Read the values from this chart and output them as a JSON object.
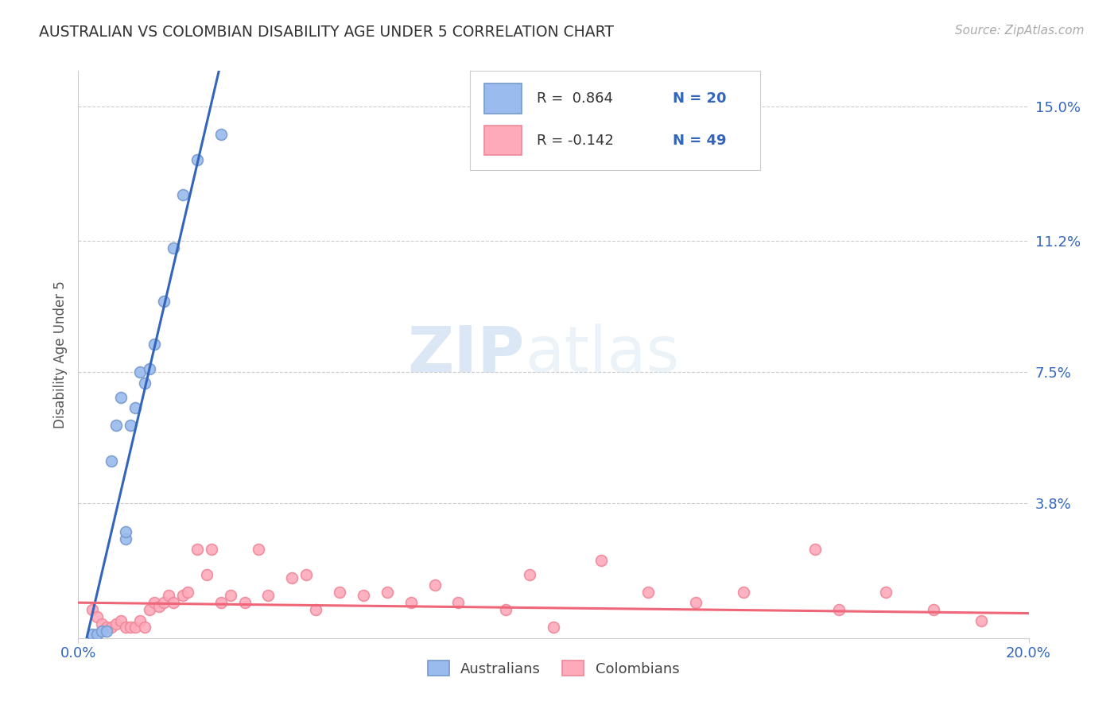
{
  "title": "AUSTRALIAN VS COLOMBIAN DISABILITY AGE UNDER 5 CORRELATION CHART",
  "source": "Source: ZipAtlas.com",
  "ylabel": "Disability Age Under 5",
  "watermark_zip": "ZIP",
  "watermark_atlas": "atlas",
  "xlim": [
    0.0,
    0.2
  ],
  "ylim": [
    0.0,
    0.16
  ],
  "yticks": [
    0.038,
    0.075,
    0.112,
    0.15
  ],
  "ytick_labels": [
    "3.8%",
    "7.5%",
    "11.2%",
    "15.0%"
  ],
  "background_color": "#ffffff",
  "grid_color": "#cccccc",
  "title_color": "#333333",
  "source_color": "#aaaaaa",
  "aus_scatter_color": "#99bbee",
  "aus_edge_color": "#7799cc",
  "col_scatter_color": "#ffaabb",
  "col_edge_color": "#ee8899",
  "aus_line_color": "#3366bb",
  "col_line_color": "#ee6677",
  "tick_color": "#3366bb",
  "aus_R": 0.864,
  "aus_N": 20,
  "col_R": -0.142,
  "col_N": 49,
  "aus_points_x": [
    0.003,
    0.004,
    0.005,
    0.006,
    0.007,
    0.008,
    0.009,
    0.01,
    0.01,
    0.011,
    0.012,
    0.013,
    0.014,
    0.015,
    0.016,
    0.018,
    0.02,
    0.022,
    0.025,
    0.03
  ],
  "aus_points_y": [
    0.001,
    0.001,
    0.002,
    0.002,
    0.05,
    0.06,
    0.068,
    0.028,
    0.03,
    0.06,
    0.065,
    0.075,
    0.072,
    0.076,
    0.083,
    0.095,
    0.11,
    0.125,
    0.135,
    0.142
  ],
  "col_points_x": [
    0.003,
    0.004,
    0.005,
    0.006,
    0.007,
    0.008,
    0.009,
    0.01,
    0.011,
    0.012,
    0.013,
    0.014,
    0.015,
    0.016,
    0.017,
    0.018,
    0.019,
    0.02,
    0.022,
    0.023,
    0.025,
    0.027,
    0.028,
    0.03,
    0.032,
    0.035,
    0.038,
    0.04,
    0.045,
    0.048,
    0.05,
    0.055,
    0.06,
    0.065,
    0.07,
    0.075,
    0.08,
    0.09,
    0.095,
    0.1,
    0.11,
    0.12,
    0.13,
    0.14,
    0.155,
    0.16,
    0.17,
    0.18,
    0.19
  ],
  "col_points_y": [
    0.008,
    0.006,
    0.004,
    0.003,
    0.003,
    0.004,
    0.005,
    0.003,
    0.003,
    0.003,
    0.005,
    0.003,
    0.008,
    0.01,
    0.009,
    0.01,
    0.012,
    0.01,
    0.012,
    0.013,
    0.025,
    0.018,
    0.025,
    0.01,
    0.012,
    0.01,
    0.025,
    0.012,
    0.017,
    0.018,
    0.008,
    0.013,
    0.012,
    0.013,
    0.01,
    0.015,
    0.01,
    0.008,
    0.018,
    0.003,
    0.022,
    0.013,
    0.01,
    0.013,
    0.025,
    0.008,
    0.013,
    0.008,
    0.005
  ],
  "marker_size": 100
}
